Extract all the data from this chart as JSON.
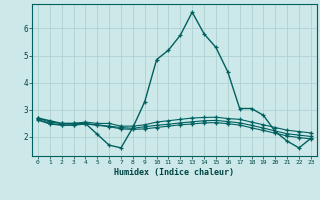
{
  "xlabel": "Humidex (Indice chaleur)",
  "bg_color": "#cce8e8",
  "grid_color": "#aacece",
  "line_color": "#006060",
  "xlim": [
    -0.5,
    23.5
  ],
  "ylim": [
    1.3,
    6.9
  ],
  "yticks": [
    2,
    3,
    4,
    5,
    6
  ],
  "xticks": [
    0,
    1,
    2,
    3,
    4,
    5,
    6,
    7,
    8,
    9,
    10,
    11,
    12,
    13,
    14,
    15,
    16,
    17,
    18,
    19,
    20,
    21,
    22,
    23
  ],
  "series": [
    [
      2.7,
      2.6,
      2.5,
      2.5,
      2.5,
      2.1,
      1.7,
      1.6,
      2.35,
      3.3,
      4.85,
      5.2,
      5.75,
      6.6,
      5.8,
      5.3,
      4.4,
      3.05,
      3.05,
      2.8,
      2.2,
      1.85,
      1.6,
      1.95
    ],
    [
      2.7,
      2.55,
      2.5,
      2.5,
      2.55,
      2.5,
      2.5,
      2.4,
      2.4,
      2.45,
      2.55,
      2.6,
      2.65,
      2.7,
      2.72,
      2.73,
      2.68,
      2.65,
      2.55,
      2.45,
      2.35,
      2.25,
      2.2,
      2.15
    ],
    [
      2.65,
      2.5,
      2.45,
      2.45,
      2.5,
      2.45,
      2.4,
      2.35,
      2.32,
      2.38,
      2.43,
      2.47,
      2.52,
      2.56,
      2.6,
      2.61,
      2.57,
      2.52,
      2.43,
      2.33,
      2.22,
      2.12,
      2.07,
      2.02
    ],
    [
      2.62,
      2.48,
      2.43,
      2.43,
      2.48,
      2.43,
      2.38,
      2.3,
      2.28,
      2.3,
      2.35,
      2.4,
      2.45,
      2.48,
      2.52,
      2.53,
      2.49,
      2.44,
      2.34,
      2.24,
      2.14,
      2.04,
      1.98,
      1.93
    ]
  ]
}
